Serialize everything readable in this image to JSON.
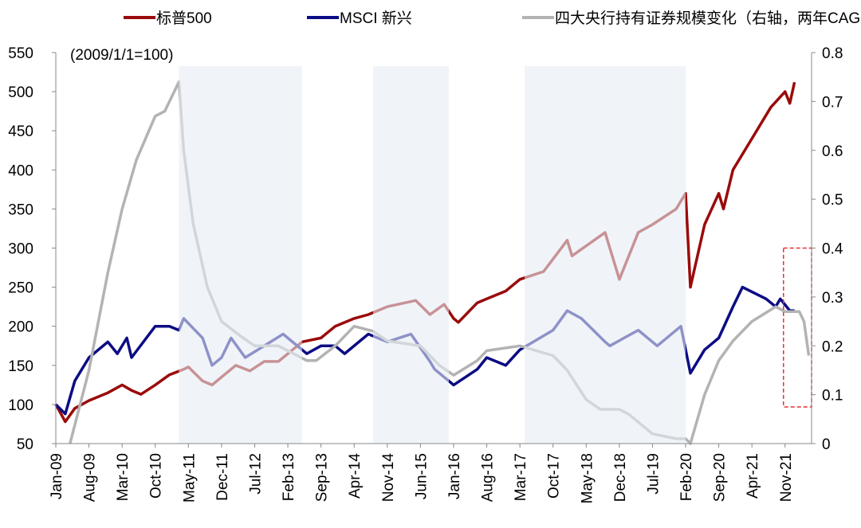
{
  "chart_data": {
    "type": "line",
    "note_label": "(2009/1/1=100)",
    "legend_position": "top",
    "y_left": {
      "range": [
        50,
        550
      ],
      "ticks": [
        50,
        100,
        150,
        200,
        250,
        300,
        350,
        400,
        450,
        500,
        550
      ]
    },
    "y_right": {
      "range": [
        0,
        0.8
      ],
      "ticks": [
        "0",
        "0.1",
        "0.2",
        "0.3",
        "0.4",
        "0.5",
        "0.6",
        "0.7",
        "0.8"
      ]
    },
    "x_ticks": [
      "Jan-09",
      "Aug-09",
      "Mar-10",
      "Oct-10",
      "May-11",
      "Dec-11",
      "Jul-12",
      "Feb-13",
      "Sep-13",
      "Apr-14",
      "Nov-14",
      "Jun-15",
      "Jan-16",
      "Aug-16",
      "Mar-17",
      "Oct-17",
      "May-18",
      "Dec-18",
      "Jul-19",
      "Feb-20",
      "Sep-20",
      "Apr-21",
      "Nov-21"
    ],
    "x_range": [
      "2009-01",
      "2022-04"
    ],
    "shaded_periods": [
      [
        "2011-03",
        "2013-05"
      ],
      [
        "2014-08",
        "2015-12"
      ],
      [
        "2017-04",
        "2020-02"
      ]
    ],
    "highlight_box": {
      "x": [
        "2021-11",
        "2022-04"
      ],
      "y_right": [
        0.075,
        0.4
      ]
    },
    "colors": {
      "sp500": "#9a0b0b",
      "msci": "#0c0c84",
      "cb": "#b3b3b3",
      "shade": "#e6ecf4",
      "box": "#e83030"
    },
    "series": [
      {
        "name": "标普500",
        "axis": "left",
        "color": "#9a0b0b",
        "points": [
          [
            "2009-01",
            100
          ],
          [
            "2009-03",
            78
          ],
          [
            "2009-05",
            95
          ],
          [
            "2009-08",
            105
          ],
          [
            "2009-12",
            115
          ],
          [
            "2010-03",
            125
          ],
          [
            "2010-05",
            118
          ],
          [
            "2010-07",
            113
          ],
          [
            "2010-10",
            125
          ],
          [
            "2011-01",
            138
          ],
          [
            "2011-04",
            145
          ],
          [
            "2011-05",
            148
          ],
          [
            "2011-08",
            130
          ],
          [
            "2011-10",
            125
          ],
          [
            "2011-12",
            135
          ],
          [
            "2012-03",
            150
          ],
          [
            "2012-06",
            143
          ],
          [
            "2012-09",
            155
          ],
          [
            "2012-12",
            155
          ],
          [
            "2013-02",
            165
          ],
          [
            "2013-05",
            180
          ],
          [
            "2013-09",
            185
          ],
          [
            "2013-12",
            200
          ],
          [
            "2014-04",
            210
          ],
          [
            "2014-07",
            215
          ],
          [
            "2014-11",
            225
          ],
          [
            "2015-05",
            233
          ],
          [
            "2015-08",
            215
          ],
          [
            "2015-11",
            228
          ],
          [
            "2016-01",
            210
          ],
          [
            "2016-02",
            205
          ],
          [
            "2016-06",
            230
          ],
          [
            "2016-08",
            235
          ],
          [
            "2016-12",
            245
          ],
          [
            "2017-03",
            260
          ],
          [
            "2017-08",
            270
          ],
          [
            "2018-01",
            310
          ],
          [
            "2018-02",
            290
          ],
          [
            "2018-09",
            320
          ],
          [
            "2018-12",
            260
          ],
          [
            "2019-04",
            320
          ],
          [
            "2019-07",
            330
          ],
          [
            "2019-12",
            350
          ],
          [
            "2020-02",
            370
          ],
          [
            "2020-03",
            250
          ],
          [
            "2020-06",
            330
          ],
          [
            "2020-09",
            370
          ],
          [
            "2020-10",
            350
          ],
          [
            "2020-12",
            400
          ],
          [
            "2021-04",
            440
          ],
          [
            "2021-08",
            480
          ],
          [
            "2021-11",
            500
          ],
          [
            "2021-12",
            485
          ],
          [
            "2022-01",
            512
          ]
        ]
      },
      {
        "name": "MSCI 新兴",
        "axis": "left",
        "color": "#0c0c84",
        "points": [
          [
            "2009-01",
            100
          ],
          [
            "2009-03",
            88
          ],
          [
            "2009-05",
            130
          ],
          [
            "2009-08",
            160
          ],
          [
            "2009-12",
            180
          ],
          [
            "2010-02",
            165
          ],
          [
            "2010-04",
            185
          ],
          [
            "2010-05",
            160
          ],
          [
            "2010-10",
            200
          ],
          [
            "2011-01",
            200
          ],
          [
            "2011-03",
            195
          ],
          [
            "2011-04",
            210
          ],
          [
            "2011-08",
            185
          ],
          [
            "2011-10",
            150
          ],
          [
            "2011-12",
            160
          ],
          [
            "2012-02",
            185
          ],
          [
            "2012-05",
            160
          ],
          [
            "2012-09",
            175
          ],
          [
            "2013-01",
            190
          ],
          [
            "2013-06",
            165
          ],
          [
            "2013-09",
            175
          ],
          [
            "2013-12",
            175
          ],
          [
            "2014-02",
            165
          ],
          [
            "2014-07",
            190
          ],
          [
            "2014-11",
            180
          ],
          [
            "2015-04",
            190
          ],
          [
            "2015-08",
            155
          ],
          [
            "2015-09",
            145
          ],
          [
            "2016-01",
            125
          ],
          [
            "2016-06",
            145
          ],
          [
            "2016-08",
            160
          ],
          [
            "2016-12",
            150
          ],
          [
            "2017-03",
            170
          ],
          [
            "2017-10",
            195
          ],
          [
            "2018-01",
            220
          ],
          [
            "2018-04",
            210
          ],
          [
            "2018-09",
            180
          ],
          [
            "2018-10",
            175
          ],
          [
            "2019-01",
            185
          ],
          [
            "2019-04",
            195
          ],
          [
            "2019-08",
            175
          ],
          [
            "2020-01",
            200
          ],
          [
            "2020-03",
            140
          ],
          [
            "2020-06",
            170
          ],
          [
            "2020-09",
            185
          ],
          [
            "2020-12",
            225
          ],
          [
            "2021-02",
            250
          ],
          [
            "2021-07",
            235
          ],
          [
            "2021-09",
            225
          ],
          [
            "2021-10",
            235
          ],
          [
            "2021-12",
            220
          ],
          [
            "2022-01",
            220
          ]
        ]
      },
      {
        "name": "四大央行持有证券规模变化（右轴，两年CAGR）",
        "axis": "right",
        "color": "#b3b3b3",
        "points": [
          [
            "2009-04",
            0
          ],
          [
            "2009-08",
            0.15
          ],
          [
            "2009-12",
            0.35
          ],
          [
            "2010-03",
            0.48
          ],
          [
            "2010-06",
            0.58
          ],
          [
            "2010-10",
            0.67
          ],
          [
            "2010-12",
            0.68
          ],
          [
            "2011-02",
            0.72
          ],
          [
            "2011-03",
            0.74
          ],
          [
            "2011-04",
            0.6
          ],
          [
            "2011-06",
            0.45
          ],
          [
            "2011-09",
            0.32
          ],
          [
            "2011-12",
            0.25
          ],
          [
            "2012-04",
            0.22
          ],
          [
            "2012-07",
            0.2
          ],
          [
            "2012-12",
            0.2
          ],
          [
            "2013-06",
            0.17
          ],
          [
            "2013-08",
            0.17
          ],
          [
            "2013-12",
            0.2
          ],
          [
            "2014-04",
            0.24
          ],
          [
            "2014-08",
            0.23
          ],
          [
            "2014-11",
            0.21
          ],
          [
            "2015-06",
            0.2
          ],
          [
            "2015-10",
            0.16
          ],
          [
            "2016-01",
            0.14
          ],
          [
            "2016-06",
            0.17
          ],
          [
            "2016-08",
            0.19
          ],
          [
            "2017-03",
            0.2
          ],
          [
            "2017-10",
            0.18
          ],
          [
            "2018-01",
            0.15
          ],
          [
            "2018-05",
            0.09
          ],
          [
            "2018-08",
            0.07
          ],
          [
            "2018-12",
            0.07
          ],
          [
            "2019-02",
            0.06
          ],
          [
            "2019-07",
            0.02
          ],
          [
            "2019-12",
            0.01
          ],
          [
            "2020-02",
            0.01
          ],
          [
            "2020-03",
            0.0
          ],
          [
            "2020-06",
            0.1
          ],
          [
            "2020-09",
            0.17
          ],
          [
            "2020-12",
            0.21
          ],
          [
            "2021-04",
            0.25
          ],
          [
            "2021-09",
            0.28
          ],
          [
            "2021-11",
            0.27
          ],
          [
            "2022-02",
            0.27
          ],
          [
            "2022-03",
            0.25
          ],
          [
            "2022-04",
            0.18
          ]
        ]
      }
    ]
  }
}
